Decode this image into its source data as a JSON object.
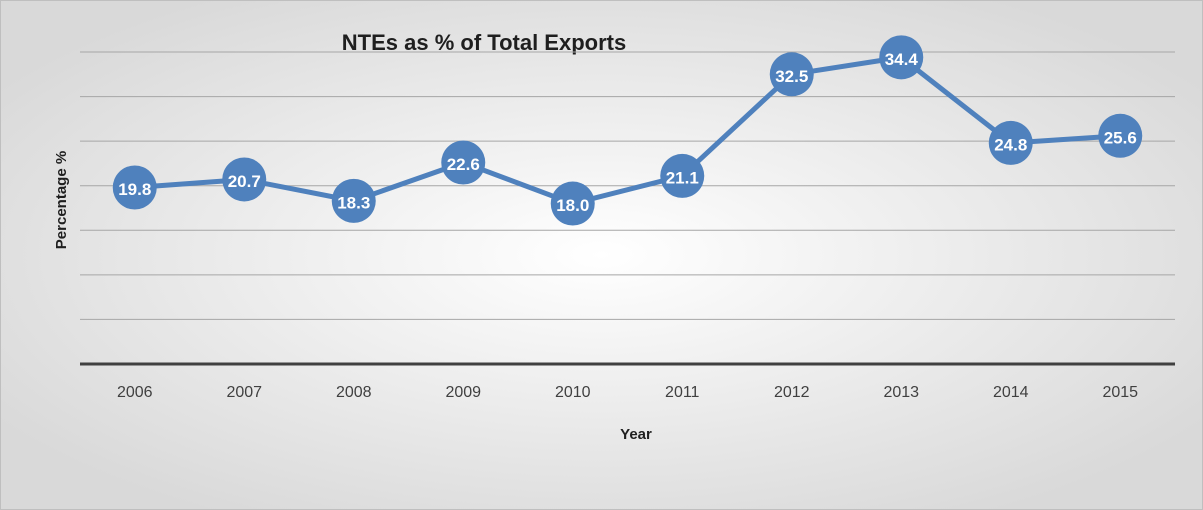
{
  "chart_data": {
    "type": "line",
    "title": "NTEs as % of Total Exports",
    "x_label": "Year",
    "y_label": "Percentage %",
    "categories": [
      "2006",
      "2007",
      "2008",
      "2009",
      "2010",
      "2011",
      "2012",
      "2013",
      "2014",
      "2015"
    ],
    "series": [
      {
        "name": "NTEs as % of Total Exports",
        "color": "#4f81bd",
        "values": [
          19.8,
          20.7,
          18.3,
          22.6,
          18.0,
          21.1,
          32.5,
          34.4,
          24.8,
          25.6
        ],
        "value_labels": [
          "19.8",
          "20.7",
          "18.3",
          "22.6",
          "18.0",
          "21.1",
          "32.5",
          "34.4",
          "24.8",
          "25.6"
        ]
      }
    ],
    "ylim": [
      0,
      35
    ],
    "yticks": [
      0,
      5,
      10,
      15,
      20,
      25,
      30,
      35
    ],
    "grid": true
  }
}
